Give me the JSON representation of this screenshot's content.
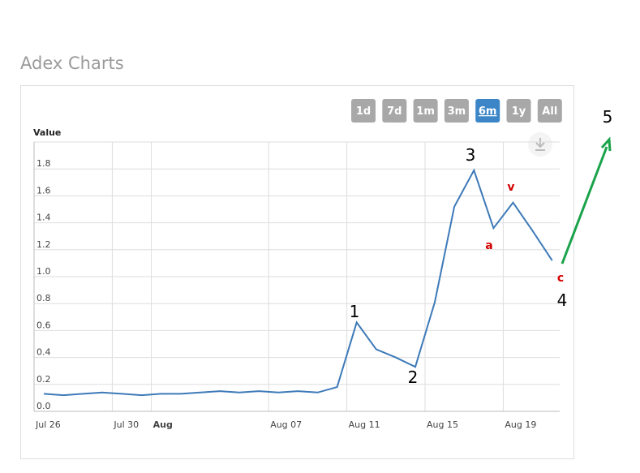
{
  "page_title": "Adex Charts",
  "range_buttons": [
    {
      "label": "1d",
      "selected": false
    },
    {
      "label": "7d",
      "selected": false
    },
    {
      "label": "1m",
      "selected": false
    },
    {
      "label": "3m",
      "selected": false
    },
    {
      "label": "6m",
      "selected": true
    },
    {
      "label": "1y",
      "selected": false
    },
    {
      "label": "All",
      "selected": false
    }
  ],
  "chart_data": {
    "type": "line",
    "y_axis_title": "Value",
    "color": "#3d7ab8",
    "grid": true,
    "categories": [
      "Jul 26",
      null,
      null,
      null,
      "Jul 30",
      null,
      "Aug",
      null,
      null,
      null,
      null,
      null,
      "Aug 07",
      null,
      null,
      null,
      "Aug 11",
      null,
      null,
      null,
      "Aug 15",
      null,
      null,
      null,
      "Aug 19",
      null,
      null
    ],
    "values": [
      0.13,
      0.12,
      0.13,
      0.14,
      0.13,
      0.12,
      0.13,
      0.13,
      0.14,
      0.15,
      0.14,
      0.15,
      0.14,
      0.15,
      0.14,
      0.18,
      0.66,
      0.46,
      0.4,
      0.33,
      0.81,
      1.52,
      1.79,
      1.36,
      1.55,
      1.34,
      1.12
    ],
    "ylim": [
      0,
      2
    ],
    "yticks": [
      {
        "value": 0,
        "label": "0.0"
      },
      0.2,
      0.4,
      0.6,
      0.8,
      {
        "value": 1,
        "label": "1.0"
      },
      1.2,
      1.4,
      1.6,
      1.8
    ],
    "annotations": [
      {
        "text": "1",
        "color": "#000000"
      },
      {
        "text": "2",
        "color": "#000000"
      },
      {
        "text": "3",
        "color": "#000000"
      },
      {
        "text": "a",
        "color": "#d40000"
      },
      {
        "text": "v",
        "color": "#d40000"
      },
      {
        "text": "c",
        "color": "#d40000"
      },
      {
        "text": "4",
        "color": "#000000"
      },
      {
        "text": "5",
        "color": "#000000"
      }
    ]
  }
}
